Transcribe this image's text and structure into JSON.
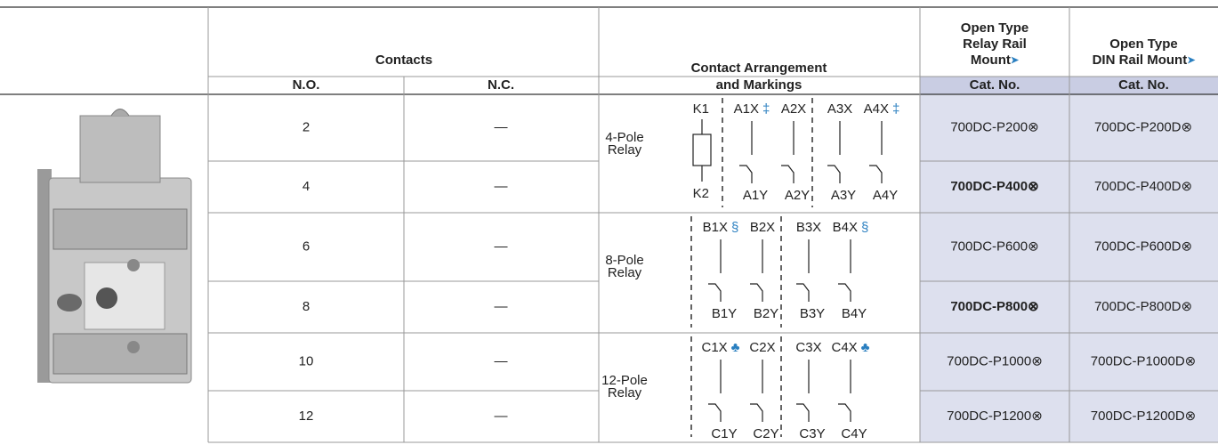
{
  "table": {
    "columns": {
      "contacts": "Contacts",
      "no": "N.O.",
      "nc": "N.C.",
      "arrangement": [
        "Contact Arrangement",
        "and Markings"
      ],
      "relay_rail": {
        "lines": [
          "Open Type",
          "Relay Rail",
          "Mount"
        ],
        "marker": "➤",
        "sub": "Cat. No."
      },
      "din_rail": {
        "lines": [
          "Open Type",
          "DIN Rail Mount"
        ],
        "marker": "➤",
        "sub": "Cat. No."
      }
    },
    "rows": [
      {
        "no": 2,
        "nc": "—",
        "relay_rail": "700DC-P200⊗",
        "din_rail": "700DC-P200D⊗"
      },
      {
        "no": 4,
        "nc": "—",
        "relay_rail": "700DC-P400⊗",
        "din_rail": "700DC-P400D⊗"
      },
      {
        "no": 6,
        "nc": "—",
        "relay_rail": "700DC-P600⊗",
        "din_rail": "700DC-P600D⊗"
      },
      {
        "no": 8,
        "nc": "—",
        "relay_rail": "700DC-P800⊗",
        "din_rail": "700DC-P800D⊗"
      },
      {
        "no": 10,
        "nc": "—",
        "relay_rail": "700DC-P1000⊗",
        "din_rail": "700DC-P1000D⊗"
      },
      {
        "no": 12,
        "nc": "—",
        "relay_rail": "700DC-P1200⊗",
        "din_rail": "700DC-P1200D⊗"
      }
    ],
    "arrangements": [
      {
        "label": [
          "4-Pole",
          "Relay"
        ],
        "coil_top": "K1",
        "coil_bottom": "K2",
        "contacts": [
          {
            "top": "A1X",
            "mark": "‡",
            "bottom": "A1Y"
          },
          {
            "top": "A2X",
            "bottom": "A2Y"
          },
          {
            "top": "A3X",
            "bottom": "A3Y"
          },
          {
            "top": "A4X",
            "mark": "‡",
            "bottom": "A4Y"
          }
        ]
      },
      {
        "label": [
          "8-Pole",
          "Relay"
        ],
        "contacts": [
          {
            "top": "B1X",
            "mark": "§",
            "bottom": "B1Y"
          },
          {
            "top": "B2X",
            "bottom": "B2Y"
          },
          {
            "top": "B3X",
            "bottom": "B3Y"
          },
          {
            "top": "B4X",
            "mark": "§",
            "bottom": "B4Y"
          }
        ]
      },
      {
        "label": [
          "12-Pole",
          "Relay"
        ],
        "contacts": [
          {
            "top": "C1X",
            "mark": "♣",
            "bottom": "C1Y"
          },
          {
            "top": "C2X",
            "bottom": "C2Y"
          },
          {
            "top": "C3X",
            "bottom": "C3Y"
          },
          {
            "top": "C4X",
            "mark": "♣",
            "bottom": "C4Y"
          }
        ]
      }
    ]
  }
}
